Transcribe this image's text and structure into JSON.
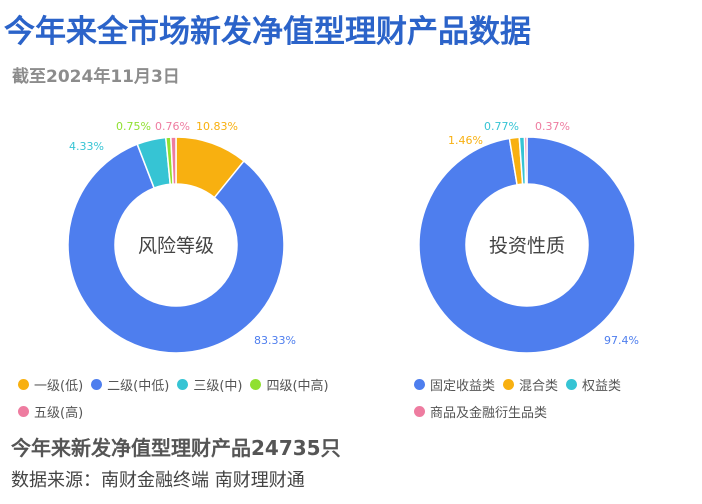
{
  "title": "今年来全市场新发净值型理财产品数据",
  "subtitle": "截至2024年11月3日",
  "chart_data": [
    {
      "type": "pie",
      "center_label": "风险等级",
      "categories": [
        "一级(低)",
        "二级(中低)",
        "三级(中)",
        "四级(中高)",
        "五级(高)"
      ],
      "values": [
        10.83,
        83.33,
        4.33,
        0.75,
        0.76
      ],
      "value_labels": [
        "10.83%",
        "83.33%",
        "4.33%",
        "0.75%",
        "0.76%"
      ],
      "colors": [
        "#f8b010",
        "#4e7eee",
        "#36c4d4",
        "#90e030",
        "#ee7ca0"
      ],
      "legend": "bottom"
    },
    {
      "type": "pie",
      "center_label": "投资性质",
      "categories": [
        "固定收益类",
        "混合类",
        "权益类",
        "商品及金融衍生品类"
      ],
      "values": [
        97.4,
        1.46,
        0.77,
        0.37
      ],
      "value_labels": [
        "97.4%",
        "1.46%",
        "0.77%",
        "0.37%"
      ],
      "colors": [
        "#4e7eee",
        "#f8b010",
        "#36c4d4",
        "#ee7ca0"
      ],
      "legend": "bottom"
    }
  ],
  "footer": {
    "total": "今年来新发净值型理财产品24735只",
    "source": "数据来源：南财金融终端 南财理财通"
  }
}
